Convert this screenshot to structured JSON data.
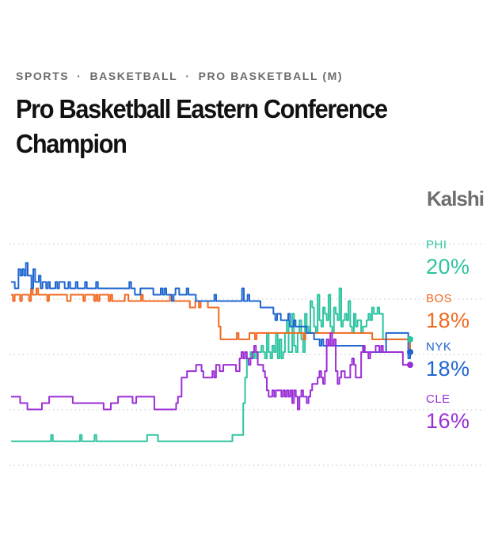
{
  "breadcrumb": {
    "items": [
      "SPORTS",
      "BASKETBALL",
      "PRO BASKETBALL (M)"
    ],
    "separator": "·"
  },
  "title": "Pro Basketball Eastern Conference Champion",
  "brand": "Kalshi",
  "chart_data": {
    "type": "line",
    "title": "Pro Basketball Eastern Conference Champion",
    "xlabel": "",
    "ylabel": "",
    "ylim": [
      0,
      36
    ],
    "grid": true,
    "legend_position": "right",
    "series": [
      {
        "name": "PHI",
        "color": "#2ec4a0",
        "current_label": "20%",
        "values": [
          4,
          4,
          4,
          4,
          4,
          4,
          4,
          4,
          4,
          4,
          4,
          4,
          4,
          4,
          4,
          4,
          4,
          4,
          4,
          4,
          4,
          4,
          5,
          4,
          4,
          4,
          4,
          4,
          4,
          4,
          4,
          4,
          4,
          4,
          4,
          4,
          4,
          4,
          5,
          4,
          4,
          4,
          4,
          4,
          4,
          4,
          5,
          4,
          4,
          4,
          4,
          4,
          4,
          4,
          4,
          4,
          4,
          4,
          4,
          4,
          4,
          4,
          4,
          4,
          4,
          4,
          4,
          4,
          4,
          4,
          4,
          4,
          4,
          4,
          4,
          5,
          5,
          5,
          5,
          5,
          5,
          4,
          4,
          4,
          4,
          4,
          4,
          4,
          4,
          4,
          4,
          4,
          4,
          4,
          4,
          4,
          4,
          4,
          4,
          4,
          4,
          4,
          4,
          4,
          4,
          4,
          4,
          4,
          4,
          4,
          4,
          4,
          4,
          4,
          4,
          4,
          4,
          4,
          4,
          4,
          4,
          4,
          5,
          5,
          5,
          5,
          5,
          5,
          10,
          14,
          17,
          17,
          18,
          17,
          18,
          17,
          18,
          18,
          19,
          18,
          17,
          21,
          18,
          17,
          19,
          18,
          21,
          17,
          20,
          17,
          18,
          21,
          23,
          18,
          18,
          24,
          19,
          18,
          21,
          23,
          20,
          18,
          24,
          22,
          21,
          26,
          25,
          22,
          21,
          27,
          23,
          22,
          25,
          24,
          23,
          27,
          22,
          21,
          25,
          24,
          23,
          28,
          22,
          23,
          24,
          23,
          26,
          22,
          21,
          24,
          22,
          23,
          23,
          21,
          22,
          22,
          23,
          24,
          23,
          25,
          24,
          24,
          25,
          24,
          24,
          20,
          20,
          20,
          20,
          20,
          20,
          20,
          20,
          20,
          20,
          20,
          20,
          20,
          20,
          20,
          20
        ]
      },
      {
        "name": "BOS",
        "color": "#f26a21",
        "current_label": "18%",
        "values": [
          27,
          26,
          27,
          27,
          27,
          26,
          27,
          27,
          27,
          27,
          26,
          28,
          27,
          27,
          28,
          27,
          27,
          27,
          27,
          27,
          26,
          27,
          27,
          27,
          27,
          27,
          27,
          27,
          27,
          27,
          27,
          26,
          26,
          27,
          27,
          27,
          27,
          27,
          27,
          27,
          26,
          27,
          27,
          27,
          27,
          27,
          26,
          27,
          26,
          27,
          27,
          27,
          27,
          27,
          26,
          27,
          26,
          26,
          26,
          26,
          26,
          26,
          26,
          27,
          27,
          26,
          26,
          26,
          26,
          26,
          26,
          26,
          27,
          26,
          26,
          26,
          26,
          26,
          26,
          26,
          26,
          26,
          26,
          26,
          26,
          26,
          26,
          26,
          27,
          26,
          26,
          26,
          26,
          26,
          26,
          26,
          26,
          26,
          26,
          25,
          25,
          25,
          26,
          26,
          25,
          26,
          26,
          26,
          26,
          25,
          25,
          25,
          25,
          25,
          25,
          22,
          20,
          20,
          20,
          20,
          20,
          20,
          20,
          20,
          20,
          21,
          20,
          20,
          20,
          20,
          20,
          20,
          21,
          21,
          21,
          20,
          21,
          21,
          21,
          21,
          21,
          21,
          21,
          21,
          21,
          21,
          21,
          21,
          21,
          21,
          21,
          21,
          21,
          21,
          21,
          21,
          21,
          21,
          21,
          21,
          21,
          21,
          20,
          21,
          21,
          21,
          21,
          21,
          21,
          21,
          21,
          21,
          21,
          21,
          21,
          21,
          21,
          21,
          21,
          21,
          21,
          21,
          21,
          21,
          21,
          21,
          21,
          21,
          21,
          21,
          21,
          21,
          21,
          21,
          21,
          21,
          21,
          21,
          21,
          21,
          20,
          20,
          20,
          20,
          20,
          20,
          20,
          20,
          20,
          20,
          20,
          20,
          20,
          20,
          20,
          20,
          20,
          20,
          20,
          20,
          20,
          18
        ]
      },
      {
        "name": "NYK",
        "color": "#1f66d1",
        "current_label": "18%",
        "values": [
          29,
          29,
          28,
          28,
          31,
          30,
          31,
          30,
          32,
          30,
          30,
          28,
          31,
          29,
          29,
          30,
          28,
          29,
          29,
          28,
          29,
          28,
          28,
          28,
          29,
          28,
          29,
          29,
          29,
          28,
          28,
          29,
          28,
          28,
          28,
          29,
          28,
          28,
          28,
          28,
          29,
          28,
          28,
          28,
          28,
          28,
          29,
          28,
          28,
          28,
          28,
          28,
          28,
          28,
          28,
          28,
          28,
          28,
          28,
          28,
          28,
          28,
          28,
          28,
          29,
          28,
          28,
          27,
          27,
          27,
          28,
          28,
          28,
          28,
          28,
          28,
          28,
          27,
          27,
          27,
          27,
          28,
          27,
          28,
          27,
          27,
          27,
          26,
          27,
          28,
          28,
          27,
          27,
          27,
          27,
          28,
          27,
          27,
          27,
          27,
          26,
          26,
          26,
          26,
          26,
          26,
          26,
          26,
          26,
          26,
          27,
          26,
          26,
          26,
          26,
          26,
          26,
          26,
          26,
          26,
          26,
          26,
          26,
          26,
          26,
          28,
          26,
          26,
          27,
          26,
          26,
          26,
          26,
          26,
          26,
          25,
          25,
          25,
          25,
          25,
          25,
          25,
          24,
          23,
          24,
          24,
          23,
          23,
          23,
          23,
          24,
          22,
          22,
          23,
          22,
          22,
          22,
          22,
          22,
          22,
          21,
          21,
          21,
          21,
          20,
          20,
          20,
          19,
          20,
          19,
          19,
          19,
          19,
          19,
          19,
          19,
          19,
          19,
          19,
          19,
          19,
          19,
          19,
          19,
          19,
          19,
          19,
          19,
          19,
          19,
          19,
          18,
          18,
          18,
          18,
          18,
          18,
          18,
          18,
          18,
          18,
          18,
          18,
          21,
          21,
          21,
          21,
          21,
          21,
          21,
          21,
          21,
          21,
          21,
          21,
          17,
          18
        ]
      },
      {
        "name": "CLE",
        "color": "#9b2fd6",
        "current_label": "16%",
        "values": [
          11,
          11,
          11,
          11,
          11,
          10,
          10,
          10,
          10,
          9,
          9,
          9,
          9,
          9,
          9,
          9,
          9,
          10,
          10,
          10,
          10,
          11,
          11,
          11,
          11,
          11,
          11,
          11,
          11,
          11,
          11,
          11,
          11,
          11,
          10,
          10,
          10,
          10,
          10,
          10,
          10,
          10,
          10,
          10,
          10,
          10,
          10,
          10,
          10,
          10,
          10,
          9,
          9,
          9,
          9,
          10,
          10,
          10,
          10,
          11,
          11,
          11,
          11,
          11,
          11,
          11,
          11,
          10,
          10,
          11,
          11,
          11,
          11,
          11,
          11,
          11,
          11,
          11,
          11,
          9,
          9,
          9,
          9,
          9,
          9,
          9,
          9,
          9,
          9,
          9,
          9,
          10,
          11,
          11,
          14,
          14,
          14,
          15,
          15,
          15,
          15,
          15,
          16,
          16,
          16,
          15,
          14,
          14,
          14,
          14,
          14,
          15,
          14,
          16,
          16,
          15,
          15,
          16,
          16,
          16,
          16,
          16,
          16,
          16,
          15,
          15,
          17,
          18,
          17,
          18,
          17,
          16,
          17,
          18,
          19,
          18,
          16,
          16,
          16,
          15,
          14,
          12,
          11,
          11,
          12,
          11,
          12,
          12,
          12,
          11,
          12,
          11,
          12,
          11,
          12,
          10,
          12,
          11,
          9,
          11,
          12,
          11,
          11,
          10,
          11,
          12,
          13,
          13,
          13,
          14,
          15,
          14,
          13,
          15,
          20,
          19,
          21,
          19,
          20,
          15,
          13,
          14,
          15,
          15,
          14,
          14,
          14,
          16,
          17,
          16,
          14,
          14,
          14,
          18,
          19,
          18,
          18,
          17,
          18,
          18,
          18,
          19,
          19,
          18,
          19,
          18,
          18,
          18,
          18,
          18,
          18,
          18,
          18,
          18,
          18,
          18,
          16,
          16,
          16,
          16,
          16
        ]
      }
    ]
  }
}
